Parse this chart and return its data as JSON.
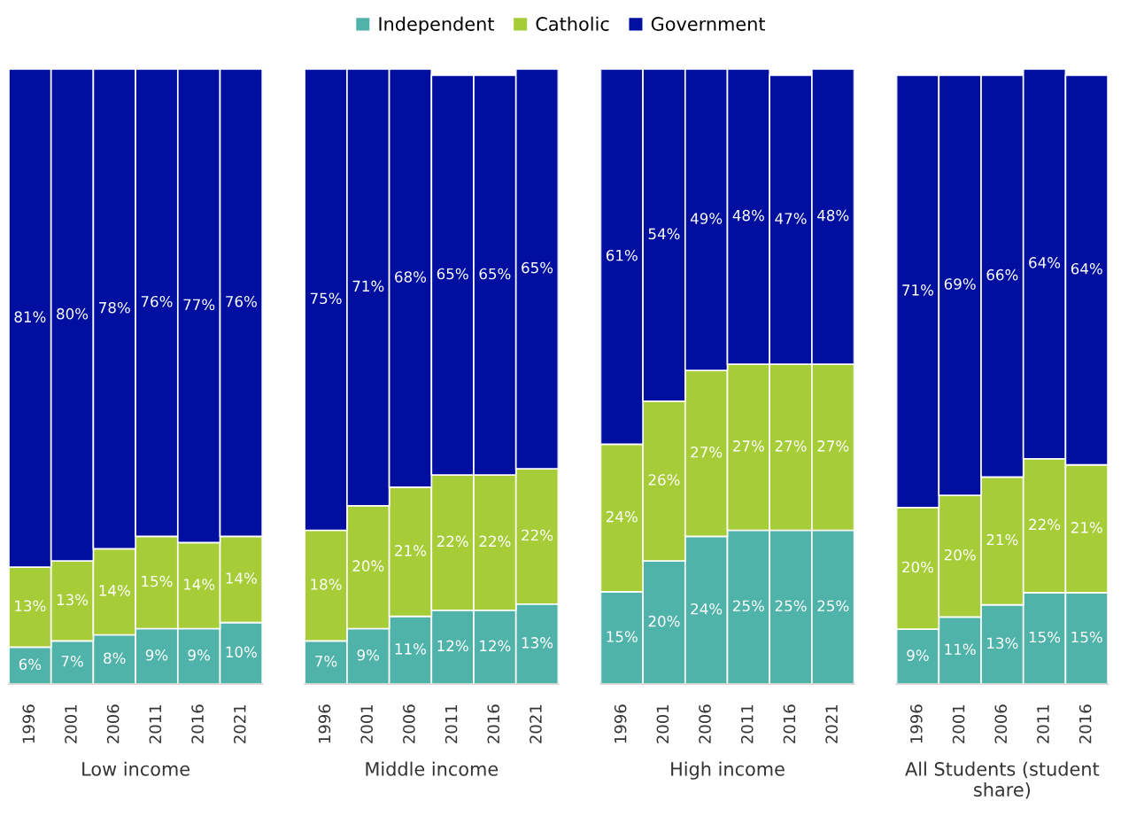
{
  "chart_data": [
    {
      "type": "bar",
      "stacked": true,
      "xlabel": "Low income",
      "categories": [
        "1996",
        "2001",
        "2006",
        "2011",
        "2016",
        "2021"
      ],
      "legend": "top",
      "grid": false,
      "series": [
        {
          "name": "Independent",
          "color": "#4fb3a9",
          "values": [
            6,
            7,
            8,
            9,
            9,
            10
          ],
          "value_labels": [
            "6%",
            "7%",
            "8%",
            "9%",
            "9%",
            "10%"
          ]
        },
        {
          "name": "Catholic",
          "color": "#a6cc38",
          "values": [
            13,
            13,
            14,
            15,
            14,
            14
          ],
          "value_labels": [
            "13%",
            "13%",
            "14%",
            "15%",
            "14%",
            "14%"
          ]
        },
        {
          "name": "Government",
          "color": "#000f9f",
          "values": [
            81,
            80,
            78,
            76,
            77,
            76
          ],
          "value_labels": [
            "81%",
            "80%",
            "78%",
            "76%",
            "77%",
            "76%"
          ]
        }
      ]
    },
    {
      "type": "bar",
      "stacked": true,
      "xlabel": "Middle income",
      "categories": [
        "1996",
        "2001",
        "2006",
        "2011",
        "2016",
        "2021"
      ],
      "grid": false,
      "series": [
        {
          "color": "#4fb3a9",
          "values": [
            7,
            9,
            11,
            12,
            12,
            13
          ],
          "value_labels": [
            "7%",
            "9%",
            "11%",
            "12%",
            "12%",
            "13%"
          ]
        },
        {
          "color": "#a6cc38",
          "values": [
            18,
            20,
            21,
            22,
            22,
            22
          ],
          "value_labels": [
            "18%",
            "20%",
            "21%",
            "22%",
            "22%",
            "22%"
          ]
        },
        {
          "color": "#000f9f",
          "values": [
            75,
            71,
            68,
            65,
            65,
            65
          ],
          "value_labels": [
            "75%",
            "71%",
            "68%",
            "65%",
            "65%",
            "65%"
          ]
        }
      ]
    },
    {
      "type": "bar",
      "stacked": true,
      "xlabel": "High income",
      "categories": [
        "1996",
        "2001",
        "2006",
        "2011",
        "2016",
        "2021"
      ],
      "grid": false,
      "series": [
        {
          "color": "#4fb3a9",
          "values": [
            15,
            20,
            24,
            25,
            25,
            25
          ],
          "value_labels": [
            "15%",
            "20%",
            "24%",
            "25%",
            "25%",
            "25%"
          ]
        },
        {
          "color": "#a6cc38",
          "values": [
            24,
            26,
            27,
            27,
            27,
            27
          ],
          "value_labels": [
            "24%",
            "26%",
            "27%",
            "27%",
            "27%",
            "27%"
          ]
        },
        {
          "color": "#000f9f",
          "values": [
            61,
            54,
            49,
            48,
            47,
            48
          ],
          "value_labels": [
            "61%",
            "54%",
            "49%",
            "48%",
            "47%",
            "48%"
          ]
        }
      ]
    },
    {
      "type": "bar",
      "stacked": true,
      "xlabel": "All Students (student share)",
      "categories": [
        "1996",
        "2001",
        "2006",
        "2011",
        "2016"
      ],
      "grid": false,
      "series": [
        {
          "color": "#4fb3a9",
          "values": [
            9,
            11,
            13,
            15,
            15
          ],
          "value_labels": [
            "9%",
            "11%",
            "13%",
            "15%",
            "15%"
          ]
        },
        {
          "color": "#a6cc38",
          "values": [
            20,
            20,
            21,
            22,
            21
          ],
          "value_labels": [
            "20%",
            "20%",
            "21%",
            "22%",
            "21%"
          ]
        },
        {
          "color": "#000f9f",
          "values": [
            71,
            69,
            66,
            64,
            64
          ],
          "value_labels": [
            "71%",
            "69%",
            "66%",
            "64%",
            "64%"
          ]
        }
      ]
    }
  ]
}
